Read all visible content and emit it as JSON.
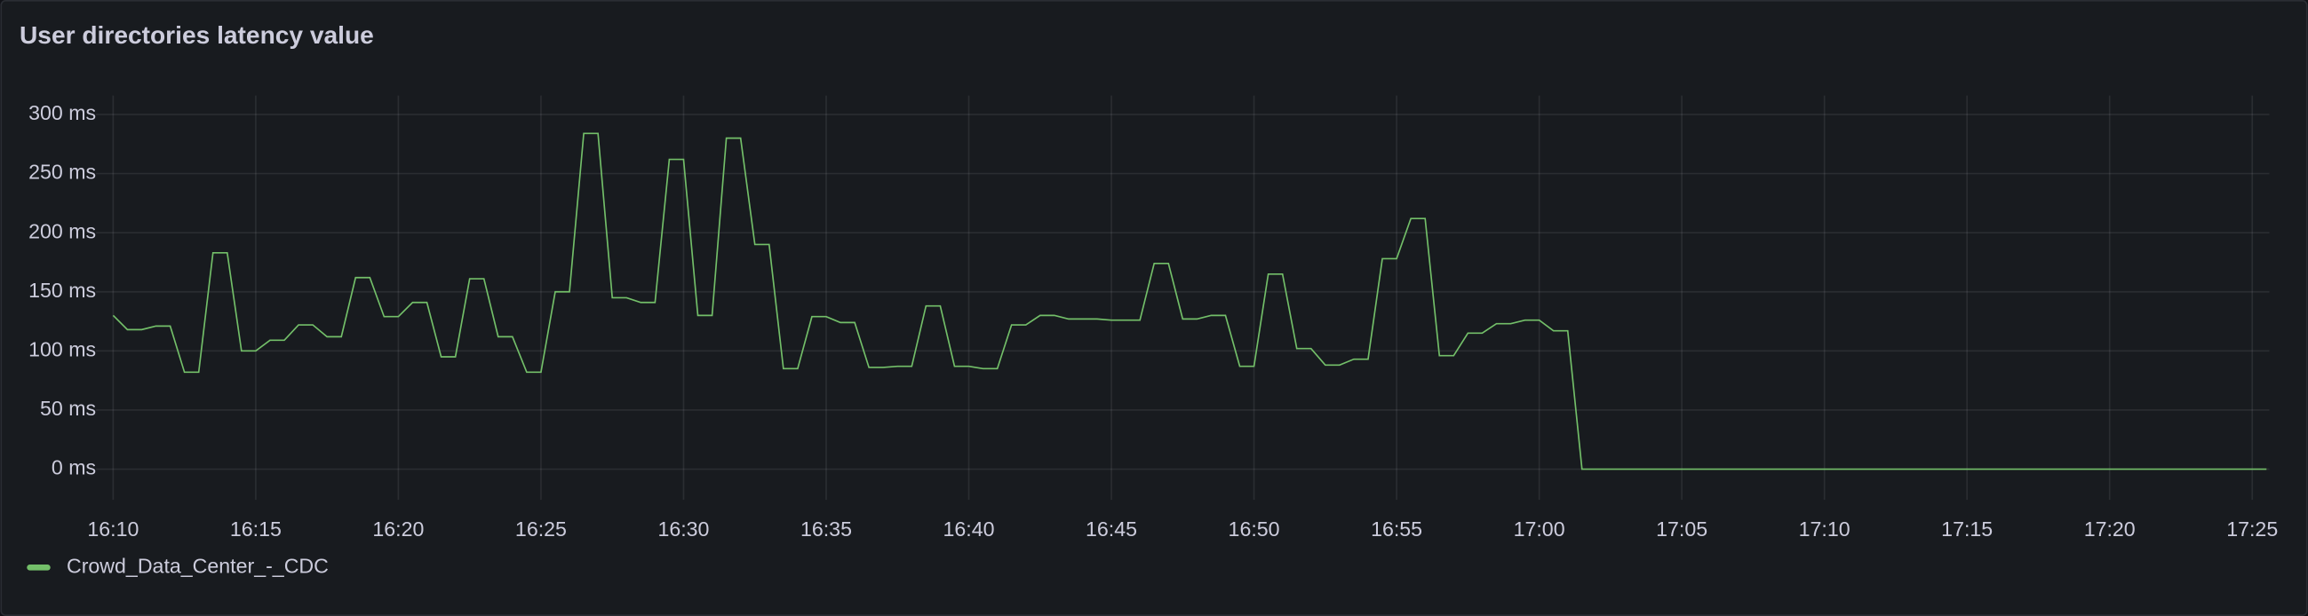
{
  "chart_data": {
    "type": "line",
    "title": "User directories latency value",
    "x": [
      970,
      970.5,
      971,
      971.5,
      972,
      972.5,
      973,
      973.5,
      974,
      974.5,
      975,
      975.5,
      976,
      976.5,
      977,
      977.5,
      978,
      978.5,
      979,
      979.5,
      980,
      980.5,
      981,
      981.5,
      982,
      982.5,
      983,
      983.5,
      984,
      984.5,
      985,
      985.5,
      986,
      986.5,
      987,
      987.5,
      988,
      988.5,
      989,
      989.5,
      990,
      990.5,
      991,
      991.5,
      992,
      992.5,
      993,
      993.5,
      994,
      994.5,
      995,
      995.5,
      996,
      996.5,
      997,
      997.5,
      998,
      998.5,
      999,
      999.5,
      1000,
      1000.5,
      1001,
      1001.5,
      1002,
      1002.5,
      1003,
      1003.5,
      1004,
      1004.5,
      1005,
      1005.5,
      1006,
      1006.5,
      1007,
      1007.5,
      1008,
      1008.5,
      1009,
      1009.5,
      1010,
      1010.5,
      1011,
      1011.5,
      1012,
      1012.5,
      1013,
      1013.5,
      1014,
      1014.5,
      1015,
      1015.5,
      1016,
      1016.5,
      1017,
      1017.5,
      1018,
      1018.5,
      1019,
      1019.5,
      1020,
      1020.5,
      1021,
      1021.5,
      1045.5
    ],
    "series": [
      {
        "name": "Crowd_Data_Center_-_CDC",
        "color": "#73bf69",
        "values": [
          130,
          118,
          118,
          121,
          121,
          82,
          82,
          183,
          183,
          100,
          100,
          109,
          109,
          122,
          122,
          112,
          112,
          162,
          162,
          129,
          129,
          141,
          141,
          95,
          95,
          161,
          161,
          112,
          112,
          82,
          82,
          150,
          150,
          284,
          284,
          145,
          145,
          141,
          141,
          262,
          262,
          130,
          130,
          280,
          280,
          190,
          190,
          85,
          85,
          129,
          129,
          124,
          124,
          86,
          86,
          87,
          87,
          138,
          138,
          87,
          87,
          85,
          85,
          122,
          122,
          130,
          130,
          127,
          127,
          127,
          126,
          126,
          126,
          174,
          174,
          127,
          127,
          130,
          130,
          87,
          87,
          165,
          165,
          102,
          102,
          88,
          88,
          93,
          93,
          178,
          178,
          212,
          212,
          96,
          96,
          115,
          115,
          123,
          123,
          126,
          126,
          117,
          117,
          0,
          0
        ]
      }
    ],
    "xlim": [
      969.4,
      1045.6
    ],
    "xticks": [
      {
        "value": 970,
        "label": "16:10"
      },
      {
        "value": 975,
        "label": "16:15"
      },
      {
        "value": 980,
        "label": "16:20"
      },
      {
        "value": 985,
        "label": "16:25"
      },
      {
        "value": 990,
        "label": "16:30"
      },
      {
        "value": 995,
        "label": "16:35"
      },
      {
        "value": 1000,
        "label": "16:40"
      },
      {
        "value": 1005,
        "label": "16:45"
      },
      {
        "value": 1010,
        "label": "16:50"
      },
      {
        "value": 1015,
        "label": "16:55"
      },
      {
        "value": 1020,
        "label": "17:00"
      },
      {
        "value": 1025,
        "label": "17:05"
      },
      {
        "value": 1030,
        "label": "17:10"
      },
      {
        "value": 1035,
        "label": "17:15"
      },
      {
        "value": 1040,
        "label": "17:20"
      },
      {
        "value": 1045,
        "label": "17:25"
      }
    ],
    "ylim": [
      -26,
      316
    ],
    "yticks": [
      {
        "value": 0,
        "label": "0 ms"
      },
      {
        "value": 50,
        "label": "50 ms"
      },
      {
        "value": 100,
        "label": "100 ms"
      },
      {
        "value": 150,
        "label": "150 ms"
      },
      {
        "value": 200,
        "label": "200 ms"
      },
      {
        "value": 250,
        "label": "250 ms"
      },
      {
        "value": 300,
        "label": "300 ms"
      }
    ],
    "grid": true,
    "legend": "bottom-left"
  }
}
